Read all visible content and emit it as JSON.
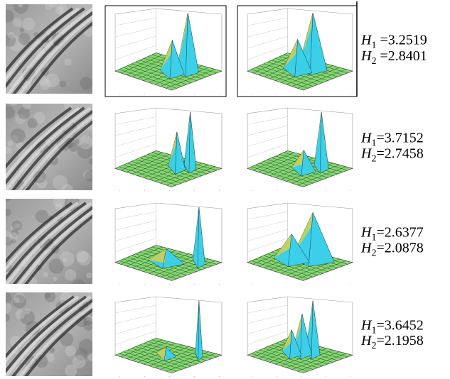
{
  "rows": [
    {
      "h1": {
        "symbol": "H",
        "sub": "1",
        "value": " =3.2519"
      },
      "h2": {
        "symbol": "H",
        "sub": "2",
        "value": " =2.8401"
      }
    },
    {
      "h1": {
        "symbol": "H",
        "sub": "1",
        "value": "=3.7152"
      },
      "h2": {
        "symbol": "H",
        "sub": "2",
        "value": "=2.7458"
      }
    },
    {
      "h1": {
        "symbol": "H",
        "sub": "1",
        "value": "=2.6377"
      },
      "h2": {
        "symbol": "H",
        "sub": "2",
        "value": "=2.0878"
      }
    },
    {
      "h1": {
        "symbol": "H",
        "sub": "1",
        "value": "=3.6452"
      },
      "h2": {
        "symbol": "H",
        "sub": "2",
        "value": "=2.1958"
      }
    }
  ]
}
